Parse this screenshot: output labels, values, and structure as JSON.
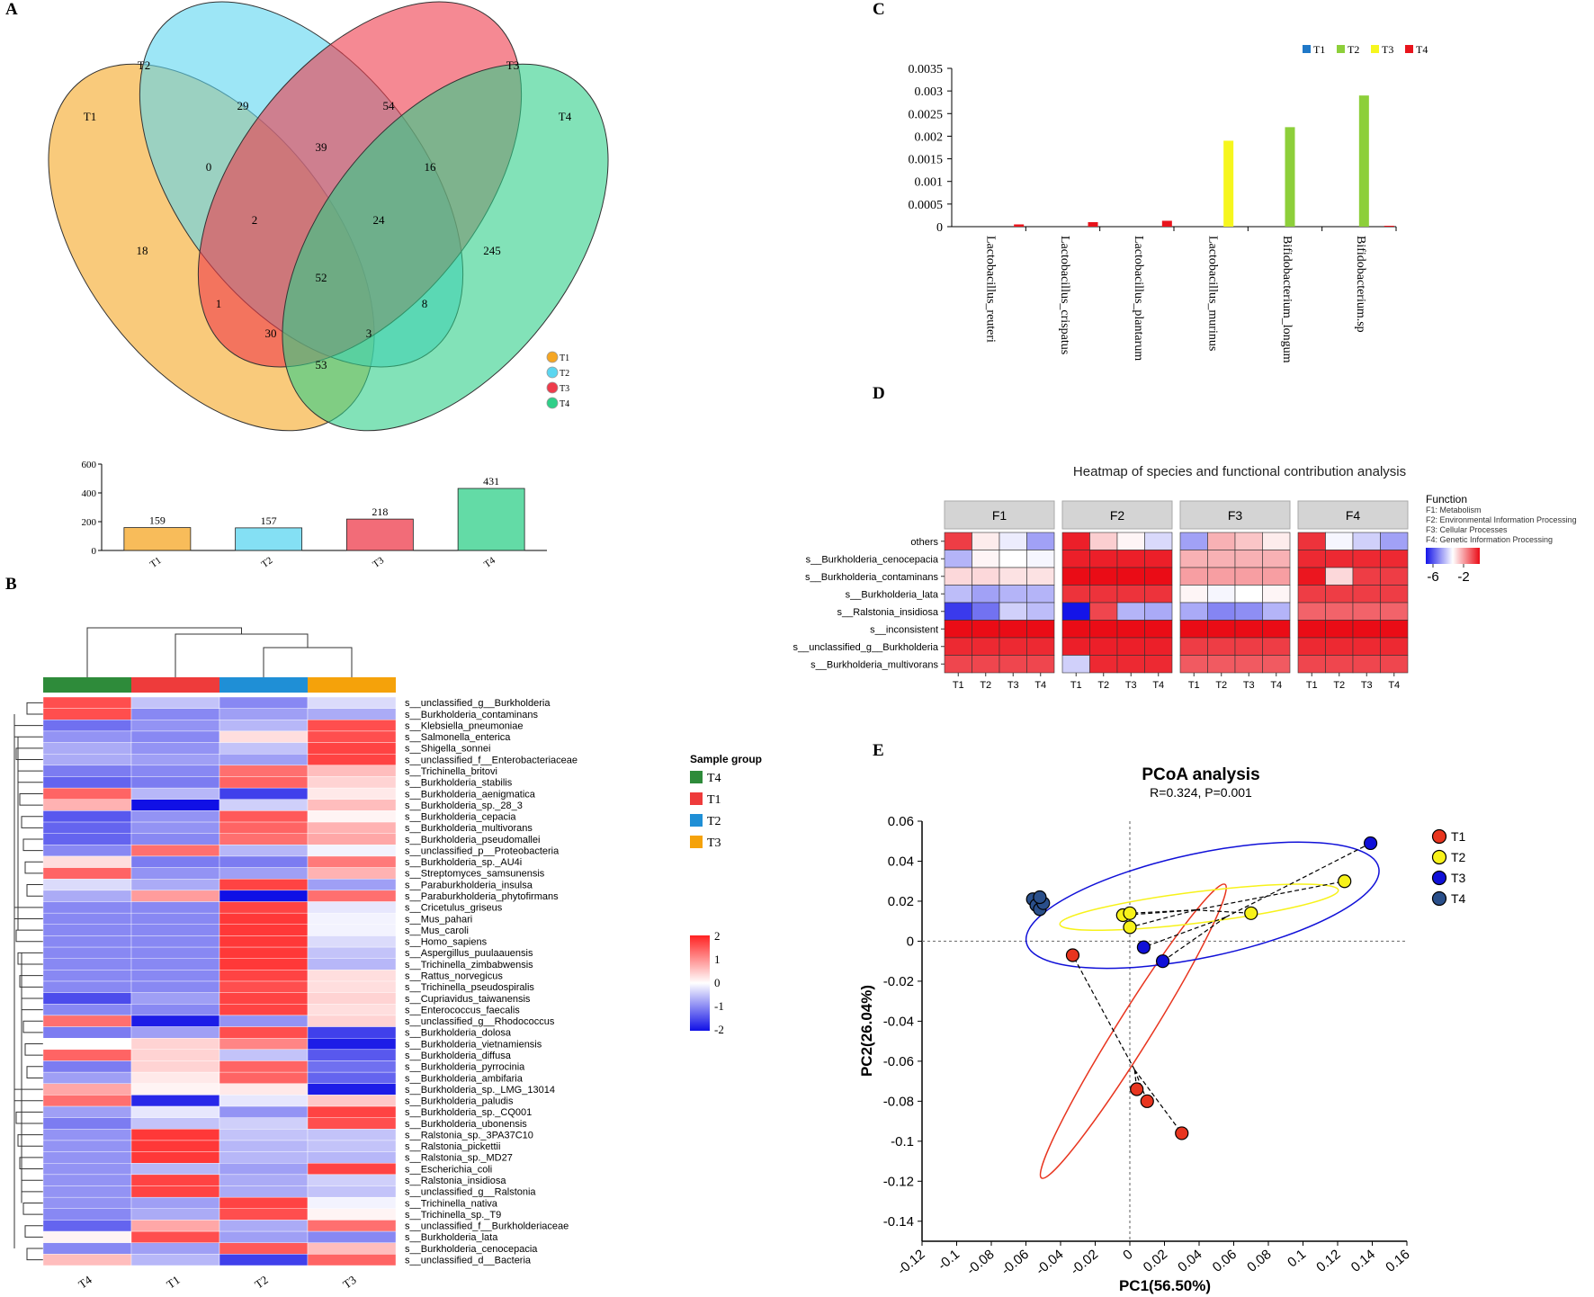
{
  "panels": {
    "A": {
      "label": "A",
      "set_labels": [
        "T1",
        "T2",
        "T3",
        "T4"
      ],
      "colors": [
        "#f5a623",
        "#5bd6f0",
        "#ee3b4b",
        "#2fcf88"
      ],
      "regions": [
        {
          "sets": "T2",
          "value": 29
        },
        {
          "sets": "T3",
          "value": 54
        },
        {
          "sets": "T2,T3",
          "value": 39
        },
        {
          "sets": "T1,T2",
          "value": 0
        },
        {
          "sets": "T3,T4",
          "value": 16
        },
        {
          "sets": "T1,T2,T3",
          "value": 2
        },
        {
          "sets": "T2,T3,T4",
          "value": 24
        },
        {
          "sets": "T1",
          "value": 18
        },
        {
          "sets": "T4",
          "value": 245
        },
        {
          "sets": "T1,T2,T3,T4",
          "value": 52
        },
        {
          "sets": "T1,T3",
          "value": 1
        },
        {
          "sets": "T2,T4",
          "value": 8
        },
        {
          "sets": "T1,T3,T4",
          "value": 30
        },
        {
          "sets": "T1,T2,T4",
          "value": 3
        },
        {
          "sets": "T1,T4",
          "value": 53
        }
      ],
      "legend": [
        "T1",
        "T2",
        "T3",
        "T4"
      ],
      "bar": {
        "type": "bar",
        "categories": [
          "T1",
          "T2",
          "T3",
          "T4"
        ],
        "values": [
          159,
          157,
          218,
          431
        ],
        "value_labels": [
          "159",
          "157",
          "218",
          "431"
        ],
        "ylim": [
          0,
          600
        ],
        "yticks": [
          "0",
          "200",
          "400",
          "600"
        ]
      }
    },
    "B": {
      "label": "B",
      "x_labels": [
        "T4",
        "T1",
        "T2",
        "T3"
      ],
      "group_colors": [
        "#2e8b3a",
        "#ee3b3b",
        "#1f8fd6",
        "#f5a20a"
      ],
      "legend_title": "Sample group",
      "legend_items": [
        "T4",
        "T1",
        "T2",
        "T3"
      ],
      "colorbar_ticks": [
        "2",
        "1",
        "0",
        "-1",
        "-2"
      ],
      "rows": [
        "s__unclassified_g__Burkholderia",
        "s__Burkholderia_contaminans",
        "s__Klebsiella_pneumoniae",
        "s__Salmonella_enterica",
        "s__Shigella_sonnei",
        "s__unclassified_f__Enterobacteriaceae",
        "s__Trichinella_britovi",
        "s__Burkholderia_stabilis",
        "s__Burkholderia_aenigmatica",
        "s__Burkholderia_sp._28_3",
        "s__Burkholderia_cepacia",
        "s__Burkholderia_multivorans",
        "s__Burkholderia_pseudomallei",
        "s__unclassified_p__Proteobacteria",
        "s__Burkholderia_sp._AU4i",
        "s__Streptomyces_samsunensis",
        "s__Paraburkholderia_insulsa",
        "s__Paraburkholderia_phytofirmans",
        "s__Cricetulus_griseus",
        "s__Mus_pahari",
        "s__Mus_caroli",
        "s__Homo_sapiens",
        "s__Aspergillus_puulaauensis",
        "s__Trichinella_zimbabwensis",
        "s__Rattus_norvegicus",
        "s__Trichinella_pseudospiralis",
        "s__Cupriavidus_taiwanensis",
        "s__Enterococcus_faecalis",
        "s__unclassified_g__Rhodococcus",
        "s__Burkholderia_dolosa",
        "s__Burkholderia_vietnamiensis",
        "s__Burkholderia_diffusa",
        "s__Burkholderia_pyrrocinia",
        "s__Burkholderia_ambifaria",
        "s__Burkholderia_sp._LMG_13014",
        "s__Burkholderia_paludis",
        "s__Burkholderia_sp._CQ001",
        "s__Burkholderia_ubonensis",
        "s__Ralstonia_sp._3PA37C10",
        "s__Ralstonia_pickettii",
        "s__Ralstonia_sp._MD27",
        "s__Escherichia_coli",
        "s__Ralstonia_insidiosa",
        "s__unclassified_g__Ralstonia",
        "s__Trichinella_nativa",
        "s__Trichinella_sp._T9",
        "s__unclassified_f__Burkholderiaceae",
        "s__Burkholderia_lata",
        "s__Burkholderia_cenocepacia",
        "s__unclassified_d__Bacteria"
      ],
      "values": [
        [
          1.6,
          -0.5,
          -1.0,
          -0.3
        ],
        [
          1.6,
          -1.0,
          -0.8,
          -0.7
        ],
        [
          -1.2,
          -0.9,
          -0.6,
          1.6
        ],
        [
          -0.9,
          -1.0,
          0.3,
          1.6
        ],
        [
          -0.7,
          -0.9,
          -0.5,
          1.7
        ],
        [
          -0.7,
          -0.8,
          -0.8,
          1.7
        ],
        [
          -1.1,
          -1.0,
          1.3,
          0.6
        ],
        [
          -1.3,
          -1.1,
          1.4,
          0.4
        ],
        [
          1.4,
          -0.6,
          -1.6,
          0.2
        ],
        [
          0.7,
          -2.0,
          -0.4,
          0.6
        ],
        [
          -1.4,
          -0.9,
          1.5,
          0.1
        ],
        [
          -1.3,
          -0.9,
          1.4,
          0.7
        ],
        [
          -1.3,
          -1.0,
          1.3,
          0.8
        ],
        [
          -1.0,
          1.3,
          -0.6,
          -0.1
        ],
        [
          0.3,
          -1.1,
          -1.1,
          1.2
        ],
        [
          1.4,
          -0.9,
          -0.8,
          0.7
        ],
        [
          -0.3,
          -0.7,
          1.7,
          -0.8
        ],
        [
          -0.7,
          0.9,
          -2.0,
          1.3
        ],
        [
          -1.0,
          -1.0,
          1.7,
          -0.2
        ],
        [
          -1.0,
          -1.0,
          1.8,
          -0.1
        ],
        [
          -1.0,
          -1.0,
          1.8,
          -0.1
        ],
        [
          -1.0,
          -1.0,
          1.8,
          -0.3
        ],
        [
          -1.0,
          -1.0,
          1.8,
          -0.5
        ],
        [
          -1.0,
          -1.0,
          1.8,
          -0.6
        ],
        [
          -1.0,
          -1.0,
          1.7,
          0.3
        ],
        [
          -1.0,
          -1.0,
          1.6,
          0.3
        ],
        [
          -1.5,
          -0.8,
          1.7,
          0.4
        ],
        [
          -1.0,
          -1.0,
          1.7,
          0.3
        ],
        [
          1.3,
          -1.9,
          -0.9,
          0.4
        ],
        [
          -1.1,
          -0.8,
          1.6,
          -1.6
        ],
        [
          0.0,
          0.4,
          1.1,
          -1.9
        ],
        [
          1.4,
          0.4,
          -0.5,
          -1.4
        ],
        [
          -1.1,
          0.4,
          1.4,
          -1.2
        ],
        [
          -0.8,
          0.2,
          1.4,
          -1.3
        ],
        [
          0.8,
          0.1,
          0.2,
          -1.9
        ],
        [
          1.3,
          -1.8,
          -0.2,
          0.5
        ],
        [
          -0.8,
          -0.2,
          -0.9,
          1.7
        ],
        [
          -1.1,
          -0.5,
          -0.4,
          1.6
        ],
        [
          -0.9,
          1.8,
          -0.5,
          -0.5
        ],
        [
          -0.9,
          1.8,
          -0.6,
          -0.5
        ],
        [
          -0.9,
          1.8,
          -0.6,
          -0.6
        ],
        [
          -0.9,
          -0.6,
          -0.8,
          1.7
        ],
        [
          -0.9,
          1.7,
          -0.7,
          -0.4
        ],
        [
          -0.9,
          1.7,
          -0.7,
          -0.5
        ],
        [
          -0.9,
          -0.8,
          1.7,
          -0.1
        ],
        [
          -1.0,
          -0.7,
          1.6,
          0.1
        ],
        [
          -1.3,
          0.8,
          -0.7,
          1.3
        ],
        [
          0.1,
          1.6,
          -0.8,
          -1.0
        ],
        [
          -1.0,
          -0.8,
          1.5,
          0.6
        ],
        [
          0.6,
          -0.6,
          -1.6,
          1.4
        ]
      ]
    },
    "C": {
      "label": "C",
      "type": "bar",
      "legend": [
        "T1",
        "T2",
        "T3",
        "T4"
      ],
      "series_colors": [
        "#1f78c8",
        "#8dcf3a",
        "#f6f61e",
        "#e8141c"
      ],
      "categories": [
        "Lactobacillus_reuteri",
        "Lactobacillus_crispatus",
        "Lactobacillus_plantarum",
        "Lactobacillus_murinus",
        "Bifidobacterium_longum",
        "Bifidobacterium.sp"
      ],
      "series": [
        {
          "name": "T1",
          "values": [
            0,
            0,
            0,
            0,
            0,
            0
          ]
        },
        {
          "name": "T2",
          "values": [
            0,
            0,
            0,
            0,
            0.0022,
            0.0029
          ]
        },
        {
          "name": "T3",
          "values": [
            0,
            0,
            0,
            0.0019,
            0,
            0
          ]
        },
        {
          "name": "T4",
          "values": [
            5e-05,
            0.0001,
            0.00013,
            0,
            0,
            2e-05
          ]
        }
      ],
      "ylim": [
        0,
        0.0035
      ],
      "yticks": [
        "0",
        "0.0005",
        "0.001",
        "0.0015",
        "0.002",
        "0.0025",
        "0.003",
        "0.0035"
      ]
    },
    "D": {
      "label": "D",
      "title": "Heatmap of species and functional contribution analysis",
      "facets": [
        "F1",
        "F2",
        "F3",
        "F4"
      ],
      "x_labels": [
        "T1",
        "T2",
        "T3",
        "T4"
      ],
      "rows": [
        "others",
        "s__Burkholderia_cenocepacia",
        "s__Burkholderia_contaminans",
        "s__Burkholderia_lata",
        "s__Ralstonia_insidiosa",
        "s__inconsistent",
        "s__unclassified_g__Burkholderia",
        "s__Burkholderia_multivorans"
      ],
      "function_title": "Function",
      "function_legend": [
        "F1: Metabolism",
        "F2: Environmental Information Processing",
        "F3: Cellular Processes",
        "F4: Genetic Information Processing"
      ],
      "colorbar_ticks": [
        "-6",
        "-2"
      ],
      "values": [
        [
          [
            -1.5,
            -3.3,
            -3.7,
            -4.5
          ],
          [
            -1.2,
            -3.0,
            -3.4,
            -3.9
          ],
          [
            -4.5,
            -2.7,
            -2.9,
            -3.3
          ],
          [
            -1.4,
            -3.6,
            -4.0,
            -4.5
          ]
        ],
        [
          [
            -4.3,
            -3.4,
            -3.5,
            -3.6
          ],
          [
            -1.2,
            -1.2,
            -1.2,
            -1.2
          ],
          [
            -2.7,
            -2.7,
            -2.7,
            -2.7
          ],
          [
            -1.3,
            -1.3,
            -1.3,
            -1.3
          ]
        ],
        [
          [
            -3.1,
            -3.1,
            -3.2,
            -3.2
          ],
          [
            -1.0,
            -1.0,
            -1.0,
            -1.0
          ],
          [
            -2.5,
            -2.5,
            -2.5,
            -2.5
          ],
          [
            -1.1,
            -3.1,
            -1.5,
            -1.5
          ]
        ],
        [
          [
            -4.2,
            -4.5,
            -4.3,
            -4.3
          ],
          [
            -1.4,
            -1.4,
            -1.4,
            -1.4
          ],
          [
            -3.4,
            -3.6,
            -3.5,
            -3.4
          ],
          [
            -1.5,
            -1.5,
            -1.5,
            -1.5
          ]
        ],
        [
          [
            -5.6,
            -5.0,
            -4.0,
            -4.2
          ],
          [
            -6.0,
            -1.6,
            -4.3,
            -4.4
          ],
          [
            -4.4,
            -4.8,
            -4.7,
            -4.3
          ],
          [
            -1.9,
            -1.9,
            -1.9,
            -1.9
          ]
        ],
        [
          [
            -1.0,
            -1.0,
            -1.0,
            -1.0
          ],
          [
            -1.0,
            -1.0,
            -1.0,
            -1.0
          ],
          [
            -1.0,
            -1.0,
            -1.0,
            -1.0
          ],
          [
            -1.0,
            -1.0,
            -1.0,
            -1.0
          ]
        ],
        [
          [
            -1.3,
            -1.3,
            -1.3,
            -1.3
          ],
          [
            -1.2,
            -1.2,
            -1.2,
            -1.2
          ],
          [
            -1.5,
            -1.5,
            -1.5,
            -1.5
          ],
          [
            -1.3,
            -1.3,
            -1.3,
            -1.3
          ]
        ],
        [
          [
            -1.6,
            -1.6,
            -1.6,
            -1.6
          ],
          [
            -4.0,
            -1.3,
            -1.3,
            -1.3
          ],
          [
            -1.8,
            -1.8,
            -1.8,
            -1.8
          ],
          [
            -1.6,
            -1.6,
            -1.6,
            -1.6
          ]
        ]
      ]
    },
    "E": {
      "label": "E",
      "type": "scatter",
      "title": "PCoA analysis",
      "subtitle": "R=0.324, P=0.001",
      "xlabel": "PC1(56.50%)",
      "ylabel": "PC2(26.04%)",
      "xlim": [
        -0.12,
        0.16
      ],
      "ylim": [
        -0.15,
        0.06
      ],
      "xticks": [
        "-0.12",
        "-0.1",
        "-0.08",
        "-0.06",
        "-0.04",
        "-0.02",
        "0",
        "0.02",
        "0.04",
        "0.06",
        "0.08",
        "0.1",
        "0.12",
        "0.14",
        "0.16"
      ],
      "yticks": [
        "0.06",
        "0.04",
        "0.02",
        "0",
        "-0.02",
        "-0.04",
        "-0.06",
        "-0.08",
        "-0.1",
        "-0.12",
        "-0.14"
      ],
      "legend": [
        "T1",
        "T2",
        "T3",
        "T4"
      ],
      "colors": [
        "#e8351f",
        "#f7f21a",
        "#1010d8",
        "#2a4f8a"
      ],
      "ellipse_colors": [
        "#e8351f",
        "#f7f21a",
        "#1010d8"
      ],
      "series": [
        {
          "name": "T1",
          "points": [
            [
              -0.033,
              -0.007
            ],
            [
              0.004,
              -0.074
            ],
            [
              0.01,
              -0.08
            ],
            [
              0.03,
              -0.096
            ]
          ]
        },
        {
          "name": "T2",
          "points": [
            [
              -0.004,
              0.013
            ],
            [
              0.0,
              0.007
            ],
            [
              0.0,
              0.014
            ],
            [
              0.07,
              0.014
            ],
            [
              0.124,
              0.03
            ]
          ]
        },
        {
          "name": "T3",
          "points": [
            [
              0.008,
              -0.003
            ],
            [
              0.019,
              -0.01
            ],
            [
              0.139,
              0.049
            ]
          ]
        },
        {
          "name": "T4",
          "points": [
            [
              -0.056,
              0.021
            ],
            [
              -0.054,
              0.018
            ],
            [
              -0.052,
              0.016
            ],
            [
              -0.05,
              0.019
            ],
            [
              -0.052,
              0.022
            ]
          ]
        }
      ]
    }
  }
}
